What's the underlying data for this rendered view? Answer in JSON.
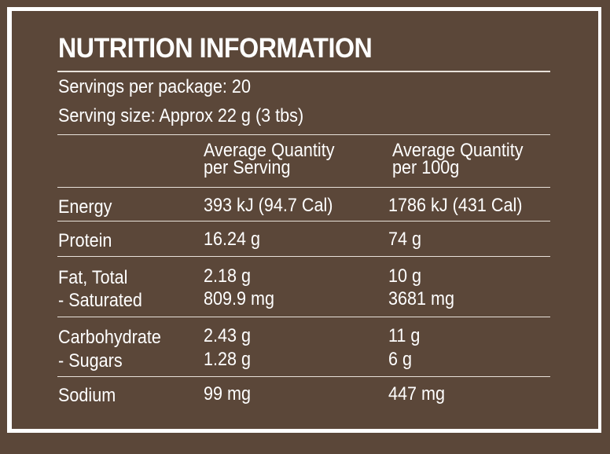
{
  "title": "NUTRITION INFORMATION",
  "servings_per_package": "Servings per package: 20",
  "serving_size": "Serving size: Approx 22 g (3 tbs)",
  "columns": {
    "per_serving_line1": "Average Quantity",
    "per_serving_line2": "per Serving",
    "per_100g_line1": "Average Quantity",
    "per_100g_line2": "per 100g"
  },
  "rows": [
    {
      "label": "Energy",
      "per_serving": "393 kJ (94.7 Cal)",
      "per_100g": "1786 kJ (431 Cal)"
    },
    {
      "label": "Protein",
      "per_serving": "16.24 g",
      "per_100g": "74 g"
    },
    {
      "label": "Fat, Total",
      "per_serving": "2.18 g",
      "per_100g": "10 g"
    },
    {
      "label": "- Saturated",
      "per_serving": "809.9 mg",
      "per_100g": "3681 mg"
    },
    {
      "label": "Carbohydrate",
      "per_serving": "2.43 g",
      "per_100g": "11 g"
    },
    {
      "label": "- Sugars",
      "per_serving": "1.28 g",
      "per_100g": "6 g"
    },
    {
      "label": "Sodium",
      "per_serving": "99 mg",
      "per_100g": "447 mg"
    }
  ],
  "colors": {
    "background": "#5b4739",
    "border": "#ffffff",
    "text": "#ffffff"
  }
}
